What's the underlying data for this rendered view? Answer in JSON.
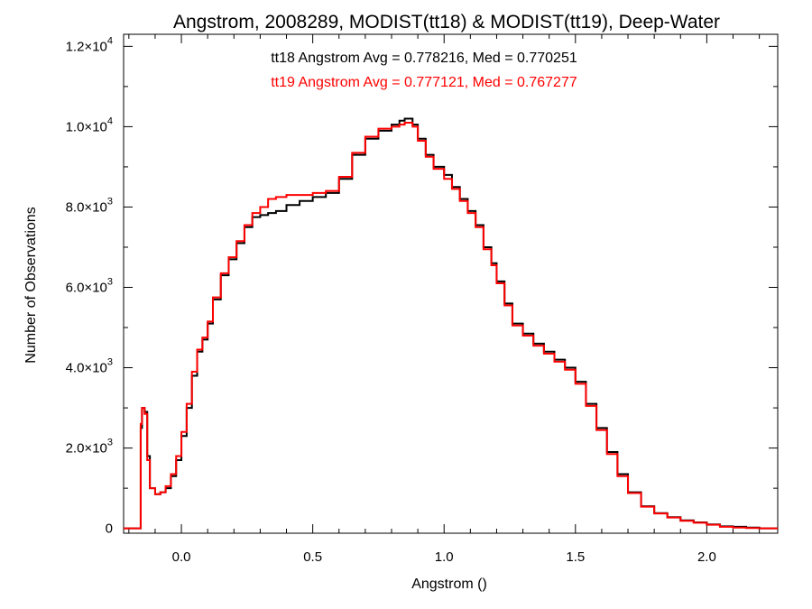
{
  "chart_data": {
    "type": "line",
    "step": true,
    "title": "Angstrom, 2008289, MODIST(tt18) & MODIST(tt19), Deep-Water",
    "xlabel": "Angstrom ()",
    "ylabel": "Number of Observations",
    "xlim": [
      -0.22,
      2.27
    ],
    "ylim": [
      -120,
      12300
    ],
    "x_ticks": [
      {
        "value": 0.0,
        "label": "0.0"
      },
      {
        "value": 0.5,
        "label": "0.5"
      },
      {
        "value": 1.0,
        "label": "1.0"
      },
      {
        "value": 1.5,
        "label": "1.5"
      },
      {
        "value": 2.0,
        "label": "2.0"
      }
    ],
    "y_ticks": [
      {
        "value": 0,
        "mant": "0",
        "exp": ""
      },
      {
        "value": 2000,
        "mant": "2.0×10",
        "exp": "3"
      },
      {
        "value": 4000,
        "mant": "4.0×10",
        "exp": "3"
      },
      {
        "value": 6000,
        "mant": "6.0×10",
        "exp": "3"
      },
      {
        "value": 8000,
        "mant": "8.0×10",
        "exp": "3"
      },
      {
        "value": 10000,
        "mant": "1.0×10",
        "exp": "4"
      },
      {
        "value": 12000,
        "mant": "1.2×10",
        "exp": "4"
      }
    ],
    "grid": false,
    "annotations": [
      {
        "text": "tt18 Angstrom Avg = 0.778216, Med = 0.770251",
        "color": "#000000"
      },
      {
        "text": "tt19 Angstrom Avg = 0.777121, Med = 0.767277",
        "color": "#ff0000"
      }
    ],
    "series": [
      {
        "color": "#000000",
        "points": [
          [
            -0.22,
            0
          ],
          [
            -0.16,
            0
          ],
          [
            -0.155,
            2500
          ],
          [
            -0.15,
            3000
          ],
          [
            -0.14,
            2900
          ],
          [
            -0.13,
            1800
          ],
          [
            -0.12,
            1000
          ],
          [
            -0.1,
            850
          ],
          [
            -0.08,
            900
          ],
          [
            -0.06,
            1000
          ],
          [
            -0.04,
            1300
          ],
          [
            -0.02,
            1700
          ],
          [
            0.0,
            2300
          ],
          [
            0.02,
            3000
          ],
          [
            0.04,
            3800
          ],
          [
            0.06,
            4400
          ],
          [
            0.08,
            4700
          ],
          [
            0.1,
            5100
          ],
          [
            0.12,
            5700
          ],
          [
            0.15,
            6300
          ],
          [
            0.18,
            6700
          ],
          [
            0.21,
            7100
          ],
          [
            0.24,
            7500
          ],
          [
            0.27,
            7750
          ],
          [
            0.3,
            7800
          ],
          [
            0.33,
            7850
          ],
          [
            0.36,
            7900
          ],
          [
            0.4,
            8050
          ],
          [
            0.45,
            8150
          ],
          [
            0.5,
            8250
          ],
          [
            0.55,
            8350
          ],
          [
            0.6,
            8700
          ],
          [
            0.65,
            9300
          ],
          [
            0.7,
            9700
          ],
          [
            0.75,
            9900
          ],
          [
            0.8,
            10050
          ],
          [
            0.83,
            10150
          ],
          [
            0.85,
            10200
          ],
          [
            0.88,
            10050
          ],
          [
            0.9,
            9700
          ],
          [
            0.93,
            9300
          ],
          [
            0.96,
            9000
          ],
          [
            1.0,
            8800
          ],
          [
            1.03,
            8500
          ],
          [
            1.06,
            8200
          ],
          [
            1.09,
            7900
          ],
          [
            1.12,
            7550
          ],
          [
            1.15,
            7000
          ],
          [
            1.18,
            6600
          ],
          [
            1.2,
            6150
          ],
          [
            1.23,
            5600
          ],
          [
            1.26,
            5100
          ],
          [
            1.3,
            4850
          ],
          [
            1.34,
            4600
          ],
          [
            1.38,
            4400
          ],
          [
            1.42,
            4200
          ],
          [
            1.46,
            4000
          ],
          [
            1.5,
            3650
          ],
          [
            1.54,
            3100
          ],
          [
            1.58,
            2500
          ],
          [
            1.62,
            1900
          ],
          [
            1.66,
            1350
          ],
          [
            1.7,
            900
          ],
          [
            1.75,
            550
          ],
          [
            1.8,
            380
          ],
          [
            1.85,
            280
          ],
          [
            1.9,
            200
          ],
          [
            1.95,
            150
          ],
          [
            2.0,
            100
          ],
          [
            2.05,
            50
          ],
          [
            2.1,
            40
          ],
          [
            2.15,
            20
          ],
          [
            2.2,
            0
          ],
          [
            2.27,
            0
          ]
        ]
      },
      {
        "color": "#ff0000",
        "points": [
          [
            -0.22,
            0
          ],
          [
            -0.16,
            0
          ],
          [
            -0.155,
            2600
          ],
          [
            -0.15,
            3000
          ],
          [
            -0.14,
            2850
          ],
          [
            -0.13,
            1700
          ],
          [
            -0.12,
            1000
          ],
          [
            -0.1,
            850
          ],
          [
            -0.08,
            900
          ],
          [
            -0.06,
            1050
          ],
          [
            -0.04,
            1350
          ],
          [
            -0.02,
            1800
          ],
          [
            0.0,
            2400
          ],
          [
            0.02,
            3100
          ],
          [
            0.04,
            3900
          ],
          [
            0.06,
            4450
          ],
          [
            0.08,
            4750
          ],
          [
            0.1,
            5150
          ],
          [
            0.12,
            5750
          ],
          [
            0.15,
            6350
          ],
          [
            0.18,
            6750
          ],
          [
            0.21,
            7150
          ],
          [
            0.24,
            7550
          ],
          [
            0.27,
            7850
          ],
          [
            0.3,
            8000
          ],
          [
            0.33,
            8200
          ],
          [
            0.36,
            8250
          ],
          [
            0.4,
            8300
          ],
          [
            0.45,
            8300
          ],
          [
            0.5,
            8350
          ],
          [
            0.55,
            8400
          ],
          [
            0.6,
            8750
          ],
          [
            0.65,
            9350
          ],
          [
            0.7,
            9750
          ],
          [
            0.75,
            9950
          ],
          [
            0.8,
            10000
          ],
          [
            0.83,
            10050
          ],
          [
            0.85,
            10100
          ],
          [
            0.88,
            10000
          ],
          [
            0.9,
            9650
          ],
          [
            0.93,
            9250
          ],
          [
            0.96,
            8950
          ],
          [
            1.0,
            8700
          ],
          [
            1.03,
            8450
          ],
          [
            1.06,
            8150
          ],
          [
            1.09,
            7850
          ],
          [
            1.12,
            7500
          ],
          [
            1.15,
            6950
          ],
          [
            1.18,
            6550
          ],
          [
            1.2,
            6100
          ],
          [
            1.23,
            5550
          ],
          [
            1.26,
            5050
          ],
          [
            1.3,
            4800
          ],
          [
            1.34,
            4550
          ],
          [
            1.38,
            4350
          ],
          [
            1.42,
            4150
          ],
          [
            1.46,
            3950
          ],
          [
            1.5,
            3600
          ],
          [
            1.54,
            3050
          ],
          [
            1.58,
            2450
          ],
          [
            1.62,
            1850
          ],
          [
            1.66,
            1300
          ],
          [
            1.7,
            880
          ],
          [
            1.75,
            540
          ],
          [
            1.8,
            370
          ],
          [
            1.85,
            270
          ],
          [
            1.9,
            190
          ],
          [
            1.95,
            140
          ],
          [
            2.0,
            90
          ],
          [
            2.05,
            40
          ],
          [
            2.1,
            20
          ],
          [
            2.15,
            10
          ],
          [
            2.2,
            0
          ],
          [
            2.27,
            0
          ]
        ]
      }
    ]
  }
}
